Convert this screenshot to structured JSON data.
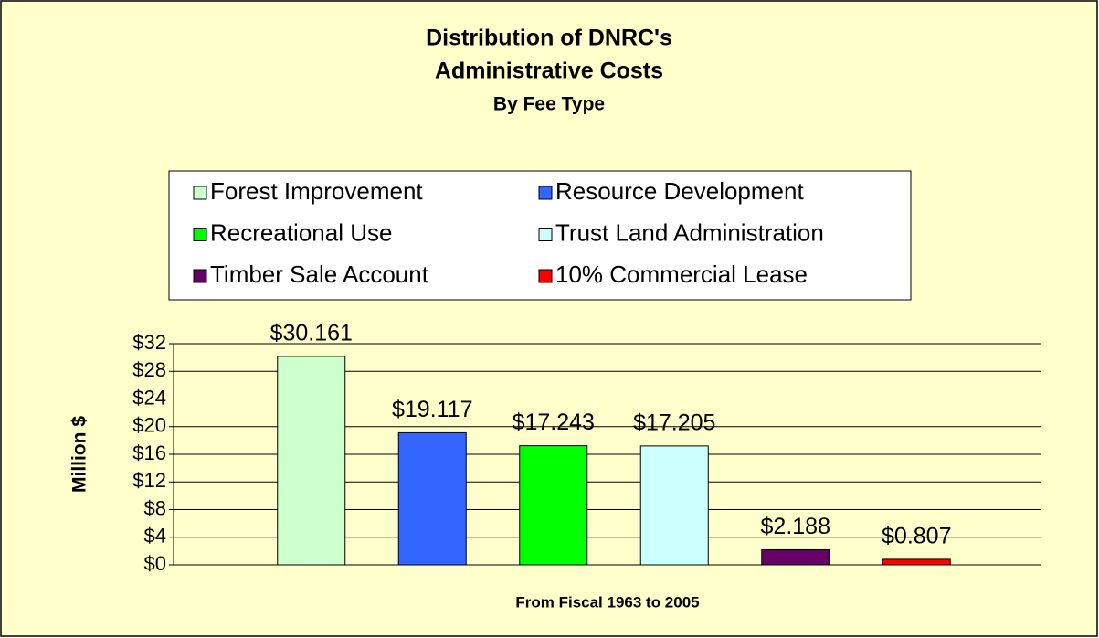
{
  "chart_data": {
    "type": "bar",
    "title": [
      "Distribution of DNRC's",
      "Administrative Costs"
    ],
    "subtitle": "By Fee Type",
    "x_label": "From Fiscal 1963 to 2005",
    "y_label": "Million $",
    "categories": [
      null
    ],
    "series": [
      {
        "name": "Forest Improvement",
        "color": "#ccffcc",
        "values": [
          30.161
        ],
        "value_labels": [
          "$30.161"
        ]
      },
      {
        "name": "Resource Development",
        "color": "#3366ff",
        "values": [
          19.117
        ],
        "value_labels": [
          "$19.117"
        ]
      },
      {
        "name": "Recreational Use",
        "color": "#00ff00",
        "values": [
          17.243
        ],
        "value_labels": [
          "$17.243"
        ]
      },
      {
        "name": "Trust Land Administration",
        "color": "#ccffff",
        "values": [
          17.205
        ],
        "value_labels": [
          "$17.205"
        ]
      },
      {
        "name": "Timber Sale Account",
        "color": "#660066",
        "values": [
          2.188
        ],
        "value_labels": [
          "$2.188"
        ]
      },
      {
        "name": "10% Commercial Lease",
        "color": "#ff0000",
        "values": [
          0.807
        ],
        "value_labels": [
          "$0.807"
        ]
      }
    ],
    "ylim": [
      0,
      32
    ],
    "yticks": [
      {
        "value": 0,
        "label": "$0"
      },
      {
        "value": 4,
        "label": "$4"
      },
      {
        "value": 8,
        "label": "$8"
      },
      {
        "value": 12,
        "label": "$12"
      },
      {
        "value": 16,
        "label": "$16"
      },
      {
        "value": 20,
        "label": "$20"
      },
      {
        "value": 24,
        "label": "$24"
      },
      {
        "value": 28,
        "label": "$28"
      },
      {
        "value": 32,
        "label": "$32"
      }
    ],
    "grid": true,
    "legend": "top"
  }
}
